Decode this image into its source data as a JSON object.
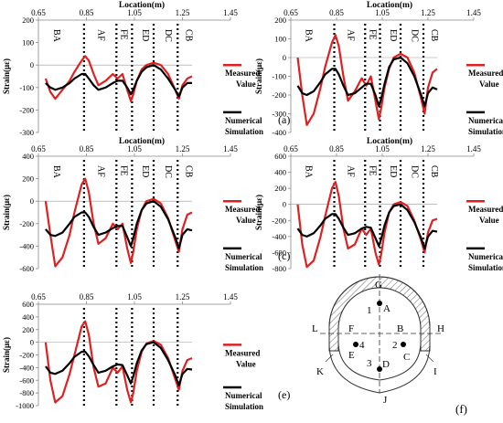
{
  "chart_data": [
    {
      "type": "line",
      "panel_label": "(a)",
      "xlabel": "Location(m)",
      "ylabel": "Strain(με)",
      "xlim": [
        0.65,
        1.45
      ],
      "ylim": [
        -300,
        200
      ],
      "xticks": [
        "0.65",
        "0.85",
        "1.05",
        "1.25",
        "1.45"
      ],
      "yticks": [
        "200",
        "100",
        "0",
        "-100",
        "-200",
        "-300"
      ],
      "grid": false,
      "legend": [
        {
          "name": "Measured Value",
          "color": "#e02020"
        },
        {
          "name": "Numerical Simulation",
          "color": "#000000"
        }
      ],
      "regions": [
        {
          "label": "BA",
          "x": 0.715
        },
        {
          "label": "AF",
          "x": 0.9
        },
        {
          "label": "FE",
          "x": 0.995
        },
        {
          "label": "ED",
          "x": 1.085
        },
        {
          "label": "DC",
          "x": 1.18
        },
        {
          "label": "CB",
          "x": 1.265
        }
      ],
      "dividers": [
        0.84,
        0.975,
        1.04,
        1.13,
        1.23
      ],
      "series": [
        {
          "name": "Measured Value",
          "color": "#e02020",
          "x": [
            0.68,
            0.7,
            0.72,
            0.75,
            0.78,
            0.8,
            0.83,
            0.845,
            0.86,
            0.88,
            0.9,
            0.93,
            0.96,
            0.98,
            1.0,
            1.02,
            1.035,
            1.045,
            1.06,
            1.08,
            1.1,
            1.13,
            1.16,
            1.19,
            1.22,
            1.235,
            1.25,
            1.27,
            1.29
          ],
          "y": [
            -60,
            -120,
            -150,
            -110,
            -70,
            -30,
            20,
            40,
            20,
            -40,
            -90,
            -70,
            -40,
            -60,
            -40,
            -110,
            -160,
            -130,
            -70,
            -20,
            0,
            10,
            0,
            -40,
            -110,
            -150,
            -90,
            -60,
            -50
          ]
        },
        {
          "name": "Numerical Simulation",
          "color": "#000000",
          "x": [
            0.68,
            0.7,
            0.72,
            0.75,
            0.78,
            0.8,
            0.83,
            0.845,
            0.86,
            0.88,
            0.9,
            0.93,
            0.96,
            0.98,
            1.0,
            1.02,
            1.035,
            1.045,
            1.06,
            1.08,
            1.1,
            1.13,
            1.16,
            1.19,
            1.22,
            1.235,
            1.25,
            1.27,
            1.29
          ],
          "y": [
            -80,
            -100,
            -110,
            -100,
            -80,
            -60,
            -40,
            -40,
            -60,
            -90,
            -110,
            -100,
            -80,
            -70,
            -70,
            -100,
            -130,
            -110,
            -70,
            -30,
            -10,
            0,
            -20,
            -60,
            -110,
            -140,
            -100,
            -80,
            -80
          ]
        }
      ]
    },
    {
      "type": "line",
      "panel_label": "(b)",
      "xlabel": "Location(m)",
      "ylabel": "Strain(με)",
      "xlim": [
        0.65,
        1.45
      ],
      "ylim": [
        -400,
        200
      ],
      "xticks": [
        "0.65",
        "0.85",
        "1.05",
        "1.25",
        "1.45"
      ],
      "yticks": [
        "200",
        "100",
        "0",
        "-100",
        "-200",
        "-300",
        "-400"
      ],
      "grid": false,
      "legend": [
        {
          "name": "Measured Value",
          "color": "#e02020"
        },
        {
          "name": "Numerical Simulation",
          "color": "#000000"
        }
      ],
      "regions": [
        {
          "label": "BA",
          "x": 0.715
        },
        {
          "label": "AF",
          "x": 0.9
        },
        {
          "label": "FE",
          "x": 0.995
        },
        {
          "label": "ED",
          "x": 1.085
        },
        {
          "label": "DC",
          "x": 1.18
        },
        {
          "label": "CB",
          "x": 1.265
        }
      ],
      "dividers": [
        0.84,
        0.975,
        1.04,
        1.13,
        1.23
      ],
      "series": [
        {
          "name": "Measured Value",
          "color": "#e02020",
          "x": [
            0.68,
            0.7,
            0.72,
            0.75,
            0.78,
            0.8,
            0.83,
            0.845,
            0.86,
            0.88,
            0.9,
            0.93,
            0.96,
            0.98,
            1.0,
            1.02,
            1.035,
            1.045,
            1.06,
            1.08,
            1.1,
            1.13,
            1.16,
            1.19,
            1.22,
            1.235,
            1.25,
            1.27,
            1.29
          ],
          "y": [
            0,
            -200,
            -360,
            -300,
            -160,
            -50,
            80,
            120,
            60,
            -100,
            -230,
            -180,
            -110,
            -150,
            -100,
            -230,
            -330,
            -270,
            -160,
            -60,
            0,
            20,
            0,
            -80,
            -220,
            -300,
            -160,
            -80,
            -60
          ]
        },
        {
          "name": "Numerical Simulation",
          "color": "#000000",
          "x": [
            0.68,
            0.7,
            0.72,
            0.75,
            0.78,
            0.8,
            0.83,
            0.845,
            0.86,
            0.88,
            0.9,
            0.93,
            0.96,
            0.98,
            1.0,
            1.02,
            1.035,
            1.045,
            1.06,
            1.08,
            1.1,
            1.13,
            1.16,
            1.19,
            1.22,
            1.235,
            1.25,
            1.27,
            1.29
          ],
          "y": [
            -150,
            -190,
            -200,
            -180,
            -130,
            -90,
            -60,
            -60,
            -90,
            -150,
            -200,
            -190,
            -160,
            -140,
            -140,
            -200,
            -260,
            -220,
            -140,
            -50,
            -10,
            0,
            -30,
            -100,
            -200,
            -260,
            -190,
            -160,
            -170
          ]
        }
      ]
    },
    {
      "type": "line",
      "panel_label": "(c)",
      "xlabel": "Location(m)",
      "ylabel": "Strain(με)",
      "xlim": [
        0.65,
        1.45
      ],
      "ylim": [
        -600,
        400
      ],
      "xticks": [
        "0.65",
        "0.85",
        "1.05",
        "1.25",
        "1.45"
      ],
      "yticks": [
        "400",
        "200",
        "0",
        "-200",
        "-400",
        "-600"
      ],
      "grid": false,
      "legend": [
        {
          "name": "Measured Value",
          "color": "#e02020"
        },
        {
          "name": "Numerical Simulation",
          "color": "#000000"
        }
      ],
      "regions": [
        {
          "label": "BA",
          "x": 0.715
        },
        {
          "label": "AF",
          "x": 0.9
        },
        {
          "label": "FE",
          "x": 0.995
        },
        {
          "label": "ED",
          "x": 1.085
        },
        {
          "label": "DC",
          "x": 1.18
        },
        {
          "label": "CB",
          "x": 1.265
        }
      ],
      "dividers": [
        0.84,
        0.975,
        1.04,
        1.13,
        1.23
      ],
      "series": [
        {
          "name": "Measured Value",
          "color": "#e02020",
          "x": [
            0.68,
            0.7,
            0.72,
            0.75,
            0.78,
            0.8,
            0.83,
            0.845,
            0.86,
            0.88,
            0.9,
            0.93,
            0.96,
            0.98,
            1.0,
            1.02,
            1.035,
            1.045,
            1.06,
            1.08,
            1.1,
            1.13,
            1.16,
            1.19,
            1.22,
            1.235,
            1.25,
            1.27,
            1.29
          ],
          "y": [
            0,
            -300,
            -580,
            -500,
            -300,
            -100,
            150,
            200,
            80,
            -200,
            -380,
            -330,
            -200,
            -250,
            -200,
            -420,
            -550,
            -450,
            -250,
            -80,
            0,
            20,
            -20,
            -150,
            -350,
            -450,
            -250,
            -120,
            -100
          ]
        },
        {
          "name": "Numerical Simulation",
          "color": "#000000",
          "x": [
            0.68,
            0.7,
            0.72,
            0.75,
            0.78,
            0.8,
            0.83,
            0.845,
            0.86,
            0.88,
            0.9,
            0.93,
            0.96,
            0.98,
            1.0,
            1.02,
            1.035,
            1.045,
            1.06,
            1.08,
            1.1,
            1.13,
            1.16,
            1.19,
            1.22,
            1.235,
            1.25,
            1.27,
            1.29
          ],
          "y": [
            -250,
            -300,
            -310,
            -280,
            -200,
            -140,
            -100,
            -100,
            -140,
            -230,
            -300,
            -280,
            -240,
            -220,
            -220,
            -320,
            -400,
            -330,
            -200,
            -80,
            -20,
            0,
            -50,
            -160,
            -320,
            -420,
            -300,
            -250,
            -260
          ]
        }
      ]
    },
    {
      "type": "line",
      "panel_label": "(d)",
      "xlabel": "Location(m)",
      "ylabel": "Strain(με)",
      "xlim": [
        0.65,
        1.45
      ],
      "ylim": [
        -800,
        600
      ],
      "xticks": [
        "0.65",
        "0.85",
        "1.05",
        "1.25",
        "1.45"
      ],
      "yticks": [
        "600",
        "400",
        "200",
        "0",
        "-200",
        "-400",
        "-600",
        "-800"
      ],
      "grid": false,
      "legend": [
        {
          "name": "Measured Value",
          "color": "#e02020"
        },
        {
          "name": "Numerical Simulation",
          "color": "#000000"
        }
      ],
      "regions": [
        {
          "label": "BA",
          "x": 0.715
        },
        {
          "label": "AF",
          "x": 0.9
        },
        {
          "label": "FE",
          "x": 0.995
        },
        {
          "label": "ED",
          "x": 1.085
        },
        {
          "label": "DC",
          "x": 1.18
        },
        {
          "label": "CB",
          "x": 1.265
        }
      ],
      "dividers": [
        0.84,
        0.975,
        1.04,
        1.13,
        1.23
      ],
      "series": [
        {
          "name": "Measured Value",
          "color": "#e02020",
          "x": [
            0.68,
            0.7,
            0.72,
            0.75,
            0.78,
            0.8,
            0.83,
            0.845,
            0.86,
            0.88,
            0.9,
            0.93,
            0.96,
            0.98,
            1.0,
            1.02,
            1.035,
            1.045,
            1.06,
            1.08,
            1.1,
            1.13,
            1.16,
            1.19,
            1.22,
            1.235,
            1.25,
            1.27,
            1.29
          ],
          "y": [
            0,
            -500,
            -780,
            -700,
            -400,
            -150,
            200,
            280,
            100,
            -300,
            -550,
            -500,
            -300,
            -380,
            -300,
            -600,
            -750,
            -620,
            -350,
            -100,
            0,
            30,
            -20,
            -200,
            -450,
            -600,
            -350,
            -200,
            -180
          ]
        },
        {
          "name": "Numerical Simulation",
          "color": "#000000",
          "x": [
            0.68,
            0.7,
            0.72,
            0.75,
            0.78,
            0.8,
            0.83,
            0.845,
            0.86,
            0.88,
            0.9,
            0.93,
            0.96,
            0.98,
            1.0,
            1.02,
            1.035,
            1.045,
            1.06,
            1.08,
            1.1,
            1.13,
            1.16,
            1.19,
            1.22,
            1.235,
            1.25,
            1.27,
            1.29
          ],
          "y": [
            -300,
            -380,
            -400,
            -360,
            -260,
            -180,
            -120,
            -120,
            -180,
            -290,
            -380,
            -360,
            -300,
            -280,
            -290,
            -420,
            -520,
            -430,
            -260,
            -100,
            -20,
            0,
            -70,
            -220,
            -420,
            -550,
            -400,
            -330,
            -340
          ]
        }
      ]
    },
    {
      "type": "line",
      "panel_label": "(e)",
      "xlabel": "",
      "ylabel": "Strain(με)",
      "xlim": [
        0.65,
        1.45
      ],
      "ylim": [
        -1000,
        600
      ],
      "xticks": [
        "0.65",
        "0.85",
        "1.05",
        "1.25",
        "1.45"
      ],
      "yticks": [
        "600",
        "400",
        "200",
        "0",
        "-200",
        "-400",
        "-600",
        "-800",
        "-1000"
      ],
      "grid": false,
      "legend": [
        {
          "name": "Measured Value",
          "color": "#e02020"
        },
        {
          "name": "Numerical Simulation",
          "color": "#000000"
        }
      ],
      "regions": [],
      "dividers": [
        0.84,
        0.975,
        1.04,
        1.13,
        1.23
      ],
      "series": [
        {
          "name": "Measured Value",
          "color": "#e02020",
          "x": [
            0.68,
            0.7,
            0.72,
            0.75,
            0.78,
            0.8,
            0.83,
            0.845,
            0.86,
            0.88,
            0.9,
            0.93,
            0.96,
            0.98,
            1.0,
            1.02,
            1.035,
            1.045,
            1.06,
            1.08,
            1.1,
            1.13,
            1.16,
            1.19,
            1.22,
            1.235,
            1.25,
            1.27,
            1.29
          ],
          "y": [
            0,
            -600,
            -950,
            -850,
            -500,
            -200,
            250,
            330,
            120,
            -400,
            -700,
            -650,
            -400,
            -480,
            -380,
            -750,
            -950,
            -800,
            -450,
            -150,
            -20,
            20,
            -40,
            -250,
            -580,
            -750,
            -450,
            -280,
            -250
          ]
        },
        {
          "name": "Numerical Simulation",
          "color": "#000000",
          "x": [
            0.68,
            0.7,
            0.72,
            0.75,
            0.78,
            0.8,
            0.83,
            0.845,
            0.86,
            0.88,
            0.9,
            0.93,
            0.96,
            0.98,
            1.0,
            1.02,
            1.035,
            1.045,
            1.06,
            1.08,
            1.1,
            1.13,
            1.16,
            1.19,
            1.22,
            1.235,
            1.25,
            1.27,
            1.29
          ],
          "y": [
            -380,
            -480,
            -500,
            -450,
            -330,
            -230,
            -150,
            -150,
            -220,
            -360,
            -480,
            -450,
            -380,
            -350,
            -360,
            -520,
            -650,
            -540,
            -330,
            -130,
            -30,
            0,
            -90,
            -280,
            -520,
            -680,
            -500,
            -420,
            -430
          ]
        }
      ]
    }
  ],
  "legend_labels": {
    "measured_line1": "Measured",
    "measured_line2": "Value",
    "numerical_line1": "Numerical",
    "numerical_line2": "Simulation"
  },
  "diagram": {
    "panel_label": "(f)",
    "points": {
      "G": "G",
      "A": "A",
      "L": "L",
      "F": "F",
      "B": "B",
      "H": "H",
      "E": "E",
      "C": "C",
      "K": "K",
      "I": "I",
      "D": "D",
      "J": "J"
    },
    "gauges": [
      "1",
      "2",
      "3",
      "4"
    ],
    "colors": {
      "hatch": "#555555",
      "outline": "#333333"
    }
  }
}
